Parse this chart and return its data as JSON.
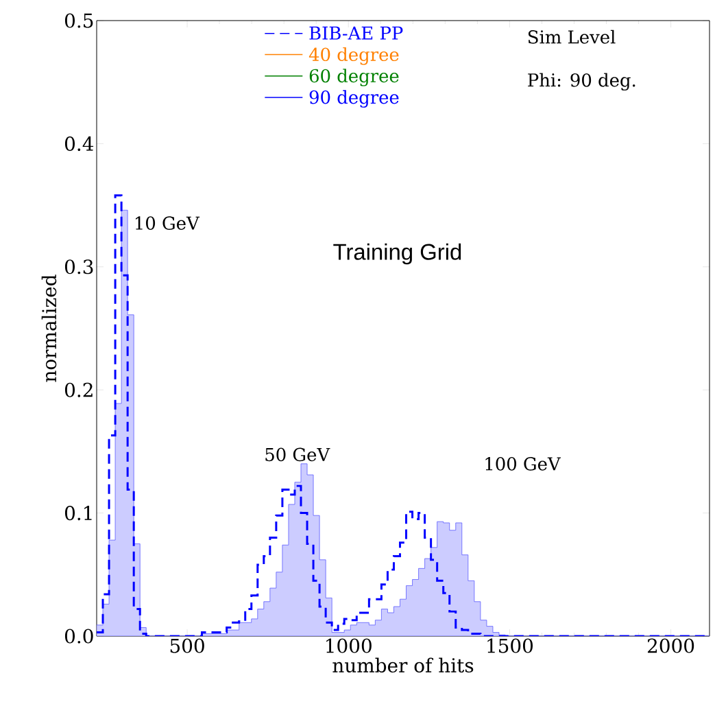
{
  "chart_data": {
    "type": "histogram",
    "xlabel": "number of hits",
    "ylabel": "normalized",
    "xlim": [
      219.2,
      2120
    ],
    "ylim": [
      0,
      0.5
    ],
    "xticks": [
      500,
      1000,
      1500,
      2000
    ],
    "yticks": [
      {
        "value": 0,
        "label": "0.0"
      },
      {
        "value": 0.1,
        "label": "0.1"
      },
      {
        "value": 0.2,
        "label": "0.2"
      },
      {
        "value": 0.3,
        "label": "0.3"
      },
      {
        "value": 0.4,
        "label": "0.4"
      },
      {
        "value": 0.5,
        "label": "0.5"
      }
    ],
    "legend": "top",
    "grid": false,
    "bins": [
      219.2,
      238.4,
      257.6,
      276.8,
      296,
      315.2,
      334.4,
      353.6,
      372.8,
      392,
      411.2,
      430.4,
      449.6,
      468.8,
      488,
      507.2,
      526.4,
      545.6,
      564.8,
      584,
      603.2,
      622.4,
      641.6,
      660.8,
      680,
      699.2,
      718.4,
      737.6,
      756.8,
      776,
      795.2,
      814.4,
      833.6,
      852.8,
      872,
      891.2,
      910.4,
      929.6,
      948.8,
      968,
      987.2,
      1006.4,
      1025.6,
      1044.8,
      1064,
      1083.2,
      1102.4,
      1121.6,
      1140.8,
      1160,
      1179.2,
      1198.4,
      1217.6,
      1236.8,
      1256,
      1275.2,
      1294.4,
      1313.6,
      1332.8,
      1352,
      1371.2,
      1390.4,
      1409.6,
      1428.8,
      1448,
      1467.2,
      1486.4,
      1505.6,
      1524.8,
      1544,
      1563.2,
      1582.4,
      1601.6,
      1620.8,
      1640,
      1659.2,
      1678.4,
      1697.6,
      1716.8,
      1736,
      1755.2,
      1774.4,
      1793.6,
      1812.8,
      1832,
      1851.2,
      1870.4,
      1889.6,
      1908.8,
      1928,
      1947.2,
      1966.4,
      1985.6,
      2004.8,
      2024,
      2043.2,
      2062.4,
      2081.6,
      2100.8,
      2120
    ],
    "series": [
      {
        "color": "#ccccff",
        "line_style": "solid",
        "values": [
          0.009,
          0.026,
          0.078,
          0.189,
          0.346,
          0.261,
          0.075,
          0.007,
          0,
          0,
          0,
          0,
          0,
          0,
          0,
          0,
          0,
          0.002,
          0.002,
          0.002,
          0.002,
          0.005,
          0.005,
          0.011,
          0.011,
          0.014,
          0.022,
          0.028,
          0.039,
          0.052,
          0.074,
          0.107,
          0.125,
          0.14,
          0.131,
          0.098,
          0.062,
          0.031,
          0.003,
          0.003,
          0.005,
          0.009,
          0.011,
          0.011,
          0.009,
          0.013,
          0.022,
          0.019,
          0.024,
          0.03,
          0.041,
          0.046,
          0.055,
          0.063,
          0.072,
          0.093,
          0.092,
          0.086,
          0.092,
          0.066,
          0.045,
          0.028,
          0.013,
          0.008,
          0.003,
          0.001,
          0,
          0,
          0,
          0,
          0,
          0,
          0,
          0,
          0,
          0,
          0,
          0,
          0,
          0,
          0,
          0,
          0,
          0,
          0,
          0,
          0,
          0,
          0,
          0,
          0,
          0,
          0,
          0,
          0,
          0,
          0,
          0,
          0
        ]
      },
      {
        "name": "BIB-AE PP",
        "color": "#0000ff",
        "line_style": "dashed",
        "values": [
          0.003,
          0.034,
          0.163,
          0.358,
          0.293,
          0.119,
          0.022,
          0.002,
          0,
          0,
          0,
          0,
          0,
          0,
          0,
          0,
          0,
          0.003,
          0.003,
          0.003,
          0.003,
          0.007,
          0.011,
          0.012,
          0.022,
          0.033,
          0.058,
          0.065,
          0.08,
          0.098,
          0.119,
          0.115,
          0.122,
          0.1,
          0.075,
          0.045,
          0.024,
          0.011,
          0.005,
          0.01,
          0.014,
          0.013,
          0.019,
          0.019,
          0.03,
          0.03,
          0.042,
          0.054,
          0.065,
          0.076,
          0.101,
          0.095,
          0.1,
          0.08,
          0.062,
          0.045,
          0.035,
          0.02,
          0.007,
          0.005,
          0.002,
          0.002,
          0,
          0,
          0,
          0,
          0,
          0,
          0,
          0,
          0,
          0,
          0,
          0,
          0,
          0,
          0,
          0,
          0,
          0,
          0,
          0,
          0,
          0,
          0,
          0,
          0,
          0,
          0,
          0,
          0,
          0,
          0,
          0,
          0,
          0,
          0,
          0,
          0
        ]
      },
      {
        "name": "40 degree",
        "type": "line",
        "color": "#ff8000"
      },
      {
        "name": "60 degree",
        "type": "line",
        "color": "#008000"
      },
      {
        "name": "90 degree",
        "type": "line",
        "color": "#0000ff"
      }
    ],
    "annotations": [
      "Sim Level",
      "Phi: 90 deg.",
      "Training Grid",
      "10 GeV",
      "50 GeV",
      "100 GeV"
    ]
  }
}
